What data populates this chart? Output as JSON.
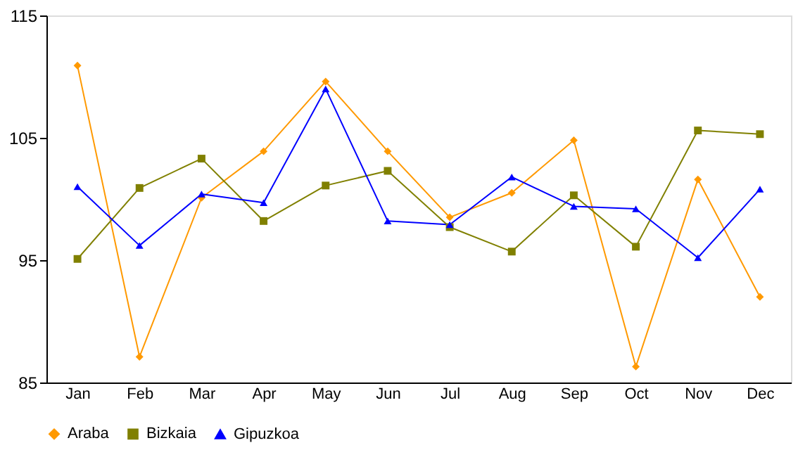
{
  "chart_data": {
    "type": "line",
    "categories": [
      "Jan",
      "Feb",
      "Mar",
      "Apr",
      "May",
      "Jun",
      "Jul",
      "Aug",
      "Sep",
      "Oct",
      "Nov",
      "Dec"
    ],
    "series": [
      {
        "name": "Araba",
        "color": "#ff9900",
        "marker": "diamond",
        "values": [
          110.9,
          87.1,
          100.1,
          103.9,
          109.6,
          103.9,
          98.5,
          100.5,
          104.8,
          86.3,
          101.6,
          92.0
        ]
      },
      {
        "name": "Bizkaia",
        "color": "#808000",
        "marker": "square",
        "values": [
          95.1,
          100.9,
          103.3,
          98.2,
          101.1,
          102.3,
          97.7,
          95.7,
          100.3,
          96.1,
          105.6,
          105.3
        ]
      },
      {
        "name": "Gipuzkoa",
        "color": "#0000ff",
        "marker": "triangle",
        "values": [
          101.0,
          96.2,
          100.4,
          99.7,
          109.0,
          98.2,
          97.9,
          101.8,
          99.4,
          99.2,
          95.2,
          100.8
        ]
      }
    ],
    "ylim": [
      85,
      115
    ],
    "yticks": [
      85,
      95,
      105,
      115
    ],
    "grid": false,
    "legend": "bottom",
    "line_style": "solid"
  }
}
